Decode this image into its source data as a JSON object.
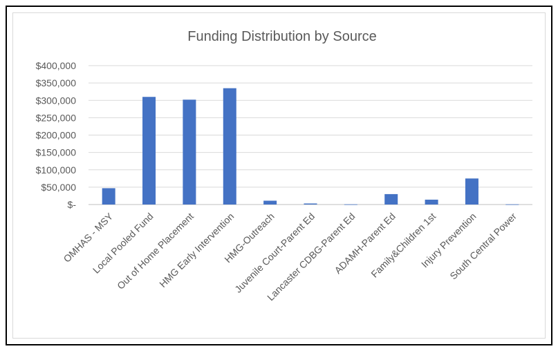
{
  "chart_data": {
    "type": "bar",
    "title": "Funding Distribution by Source",
    "xlabel": "",
    "ylabel": "",
    "ylim": [
      0,
      400000
    ],
    "grid": true,
    "legend": "none",
    "bar_color": "#4472c4",
    "y_ticks": [
      {
        "value": 400000,
        "label": "$400,000"
      },
      {
        "value": 350000,
        "label": "$350,000"
      },
      {
        "value": 300000,
        "label": "$300,000"
      },
      {
        "value": 250000,
        "label": "$250,000"
      },
      {
        "value": 200000,
        "label": "$200,000"
      },
      {
        "value": 150000,
        "label": "$150,000"
      },
      {
        "value": 100000,
        "label": "$100,000"
      },
      {
        "value": 50000,
        "label": "$50,000"
      },
      {
        "value": 0,
        "label": "$-"
      }
    ],
    "categories": [
      "OMHAS - MSY",
      "Local Pooled Fund",
      "Out of Home Placement",
      "HMG Early Intervention",
      "HMG-Outreach",
      "Juvenile Court-Parent Ed",
      "Lancaster CDBG-Parent Ed",
      "ADAMH-Parent Ed",
      "Family&Children 1st",
      "Injury Prevention",
      "South Central Power"
    ],
    "values": [
      47000,
      310000,
      302000,
      335000,
      11000,
      3000,
      500,
      30000,
      14000,
      75000,
      500
    ]
  }
}
